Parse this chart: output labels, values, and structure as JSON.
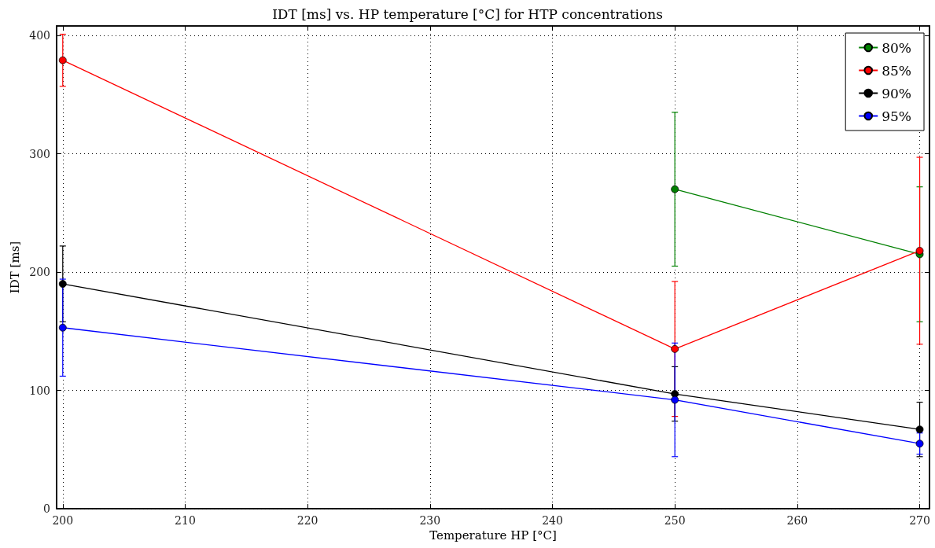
{
  "chart_data": {
    "type": "line",
    "title": "IDT [ms] vs. HP temperature [°C] for HTP concentrations",
    "xlabel": "Temperature HP [°C]",
    "ylabel": "IDT [ms]",
    "xlim": [
      199.5,
      270.8
    ],
    "xticks": [
      200,
      210,
      220,
      230,
      240,
      250,
      260,
      270
    ],
    "ylim": [
      0,
      408
    ],
    "yticks": [
      0,
      100,
      200,
      300,
      400
    ],
    "grid": true,
    "legend": "top right",
    "marker": "circle",
    "line_style": "solid",
    "series": [
      {
        "name": "80%",
        "color": "#008000",
        "x": [
          250,
          270
        ],
        "values": [
          270,
          215
        ],
        "errors": [
          65,
          57
        ]
      },
      {
        "name": "85%",
        "color": "#ff0000",
        "x": [
          200,
          250,
          270
        ],
        "values": [
          379,
          135,
          218
        ],
        "errors": [
          22,
          57,
          79
        ]
      },
      {
        "name": "90%",
        "color": "#000000",
        "x": [
          200,
          250,
          270
        ],
        "values": [
          190,
          97,
          67
        ],
        "errors": [
          32,
          23,
          23
        ]
      },
      {
        "name": "95%",
        "color": "#0000ff",
        "x": [
          200,
          250,
          270
        ],
        "values": [
          153,
          92,
          55
        ],
        "errors": [
          41,
          48,
          9
        ]
      }
    ]
  }
}
